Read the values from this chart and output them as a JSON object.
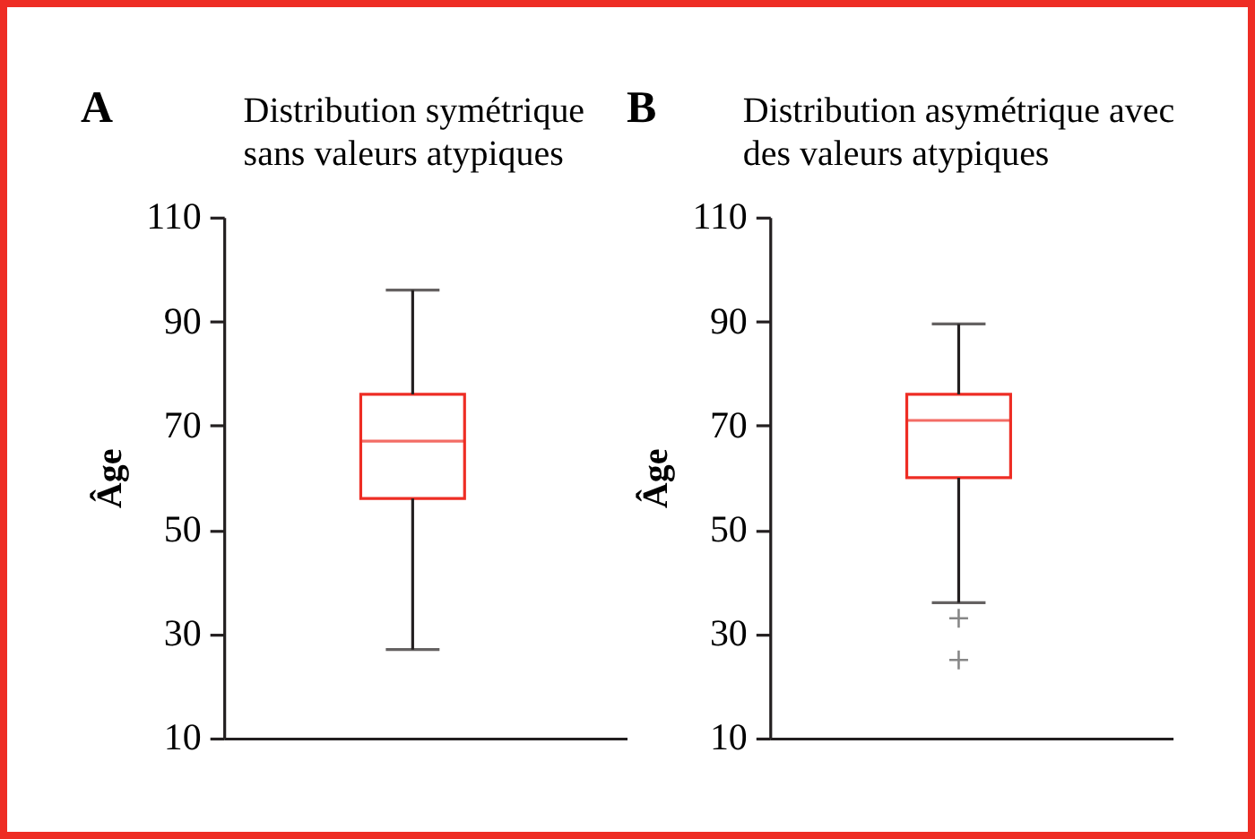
{
  "chart_data": [
    {
      "type": "box",
      "title": "A",
      "subtitle": "Distribution symétrique\nsans valeurs atypiques",
      "ylabel": "Âge",
      "categories": [
        null
      ],
      "ylim": [
        10,
        110
      ],
      "yticks": [
        10,
        30,
        50,
        70,
        90,
        110
      ],
      "tick_labels": "y",
      "series": [
        {
          "color": "#ee2d24",
          "boxes": [
            {
              "low": 27,
              "q1": 56,
              "median": 67,
              "q3": 76,
              "high": 96
            }
          ]
        }
      ]
    },
    {
      "type": "box",
      "title": "B",
      "subtitle": "Distribution asymétrique avec\ndes valeurs atypiques",
      "ylabel": "Âge",
      "categories": [
        null
      ],
      "ylim": [
        10,
        110
      ],
      "yticks": [
        10,
        30,
        50,
        70,
        90,
        110
      ],
      "tick_labels": "y",
      "marker": "cross",
      "series": [
        {
          "color": "#ee2d24",
          "boxes": [
            {
              "low": 36,
              "q1": 60,
              "median": 71,
              "q3": 76,
              "high": 89.5,
              "outliers": [
                33,
                25
              ]
            }
          ]
        }
      ]
    }
  ]
}
